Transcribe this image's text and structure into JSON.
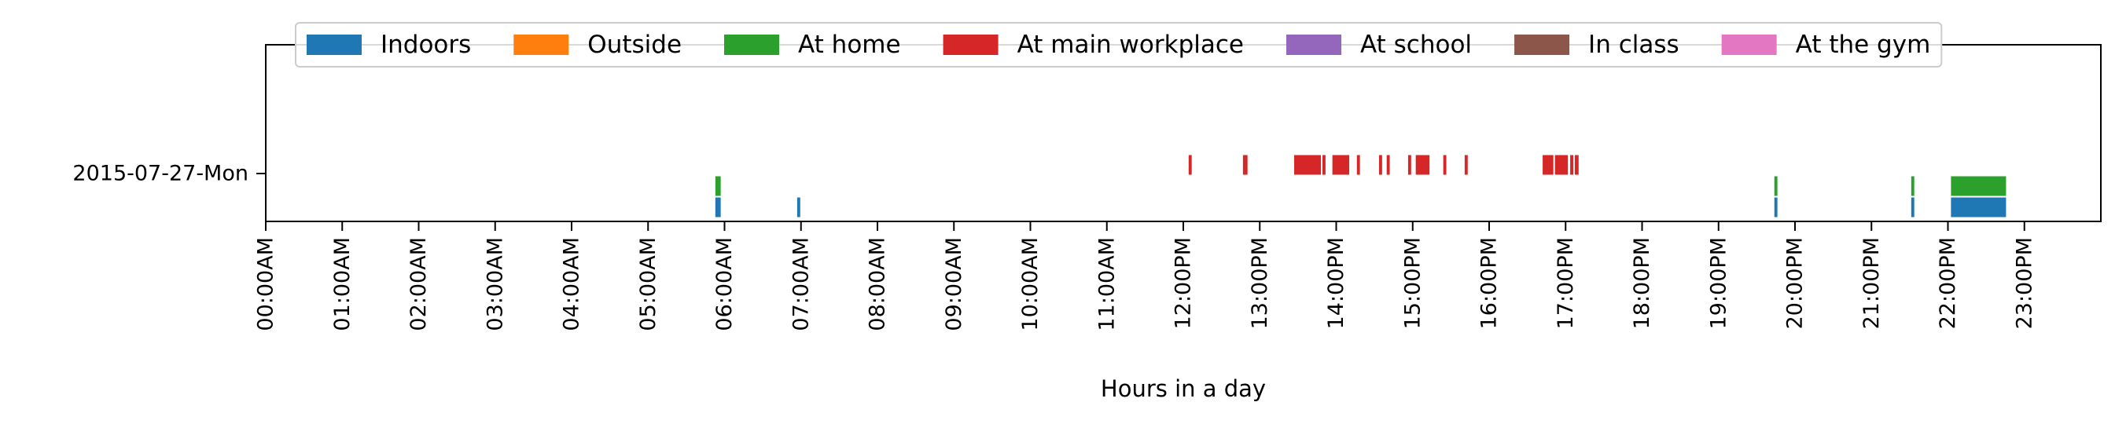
{
  "chart_data": {
    "type": "timeline",
    "xlabel": "Hours in a day",
    "xlim": [
      0,
      24
    ],
    "x_tick_labels": [
      "00:00AM",
      "01:00AM",
      "02:00AM",
      "03:00AM",
      "04:00AM",
      "05:00AM",
      "06:00AM",
      "07:00AM",
      "08:00AM",
      "09:00AM",
      "10:00AM",
      "11:00AM",
      "12:00PM",
      "13:00PM",
      "14:00PM",
      "15:00PM",
      "16:00PM",
      "17:00PM",
      "18:00PM",
      "19:00PM",
      "20:00PM",
      "21:00PM",
      "22:00PM",
      "23:00PM"
    ],
    "y_label": "2015-07-27-Mon",
    "legend_position": "top-center",
    "series": [
      {
        "name": "Indoors",
        "color": "#1f77b4",
        "lane": 0,
        "intervals": [
          [
            5.88,
            5.95
          ],
          [
            6.95,
            6.99
          ],
          [
            19.73,
            19.77
          ],
          [
            21.52,
            21.56
          ],
          [
            22.04,
            22.76
          ]
        ]
      },
      {
        "name": "Outside",
        "color": "#ff7f0e",
        "lane": 1,
        "intervals": []
      },
      {
        "name": "At home",
        "color": "#2ca02c",
        "lane": 1,
        "intervals": [
          [
            5.88,
            5.95
          ],
          [
            19.73,
            19.77
          ],
          [
            21.52,
            21.56
          ],
          [
            22.04,
            22.76
          ]
        ]
      },
      {
        "name": "At main workplace",
        "color": "#d62728",
        "lane": 2,
        "intervals": [
          [
            12.07,
            12.11
          ],
          [
            12.78,
            12.84
          ],
          [
            13.45,
            13.8
          ],
          [
            13.82,
            13.86
          ],
          [
            13.95,
            14.17
          ],
          [
            14.27,
            14.31
          ],
          [
            14.56,
            14.6
          ],
          [
            14.66,
            14.7
          ],
          [
            14.94,
            14.98
          ],
          [
            15.04,
            15.22
          ],
          [
            15.4,
            15.44
          ],
          [
            15.68,
            15.72
          ],
          [
            16.7,
            16.84
          ],
          [
            16.86,
            17.03
          ],
          [
            17.06,
            17.1
          ],
          [
            17.12,
            17.17
          ]
        ]
      },
      {
        "name": "At school",
        "color": "#9467bd",
        "lane": 3,
        "intervals": []
      },
      {
        "name": "In class",
        "color": "#8c564b",
        "lane": 4,
        "intervals": []
      },
      {
        "name": "At the gym",
        "color": "#e377c2",
        "lane": 5,
        "intervals": []
      }
    ]
  }
}
